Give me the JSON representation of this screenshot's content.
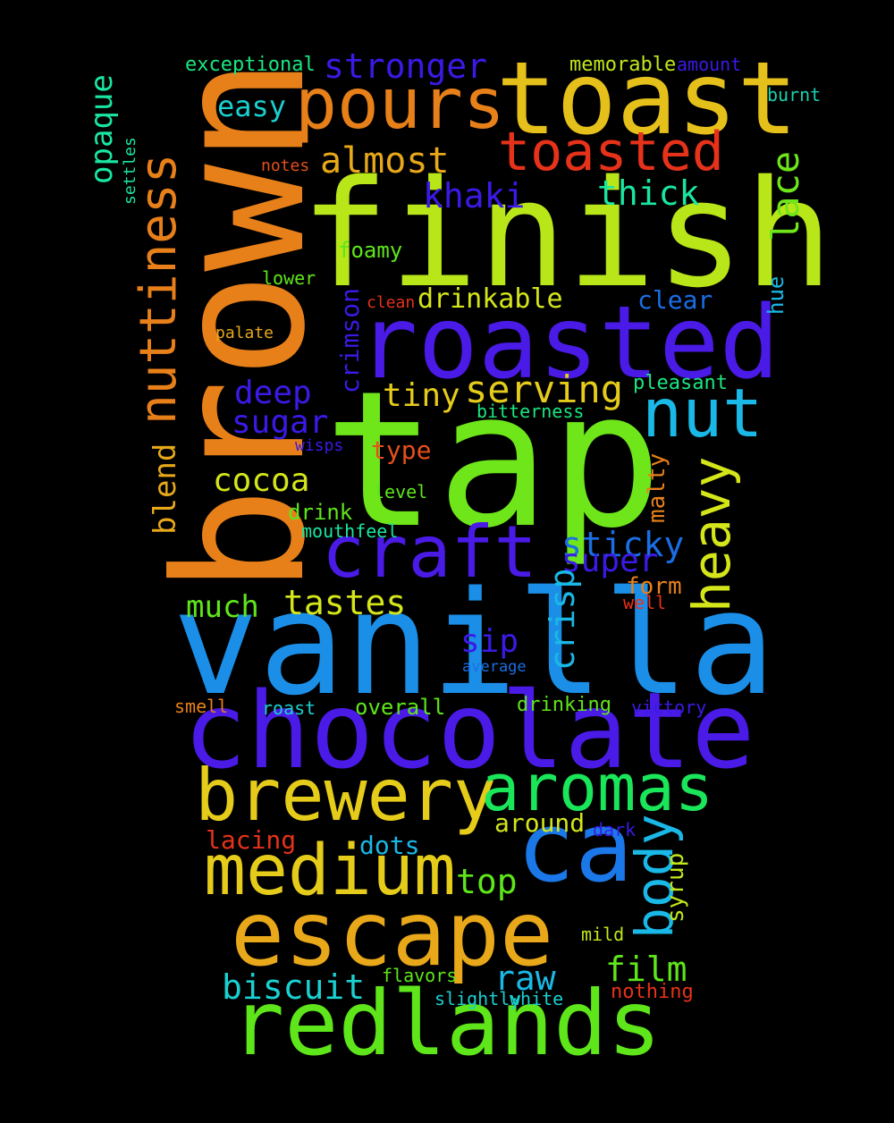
{
  "words": [
    {
      "text": "tap",
      "color": "#6ee61a"
    },
    {
      "text": "brown",
      "color": "#e8801a"
    },
    {
      "text": "finish",
      "color": "#b9e619"
    },
    {
      "text": "vanilla",
      "color": "#1b8fe8"
    },
    {
      "text": "chocolate",
      "color": "#4a1ae6"
    },
    {
      "text": "roasted",
      "color": "#4a1ae6"
    },
    {
      "text": "toast",
      "color": "#e6c01a"
    },
    {
      "text": "pours",
      "color": "#e8801a"
    },
    {
      "text": "redlands",
      "color": "#5ee61a"
    },
    {
      "text": "escape",
      "color": "#e8a81a"
    },
    {
      "text": "ca",
      "color": "#1b78e8"
    },
    {
      "text": "brewery",
      "color": "#e6cc1a"
    },
    {
      "text": "aromas",
      "color": "#1ae65a"
    },
    {
      "text": "medium",
      "color": "#e6cc1a"
    },
    {
      "text": "craft",
      "color": "#4a1ae6"
    },
    {
      "text": "nuttiness",
      "color": "#e8801a"
    },
    {
      "text": "nut",
      "color": "#1ab8e6"
    },
    {
      "text": "toasted",
      "color": "#e6321a"
    },
    {
      "text": "body",
      "color": "#1ab8e6"
    },
    {
      "text": "heavy",
      "color": "#d4e61a"
    },
    {
      "text": "serving",
      "color": "#e6cc1a"
    },
    {
      "text": "tastes",
      "color": "#d4e61a"
    },
    {
      "text": "stronger",
      "color": "#3a1ae6"
    },
    {
      "text": "almost",
      "color": "#e8a81a"
    },
    {
      "text": "lace",
      "color": "#6ee61a"
    },
    {
      "text": "thick",
      "color": "#1ae6a0"
    },
    {
      "text": "khaki",
      "color": "#3a1ae6"
    },
    {
      "text": "film",
      "color": "#5ee61a"
    },
    {
      "text": "biscuit",
      "color": "#1ad0d0"
    },
    {
      "text": "sticky",
      "color": "#1a6ee6"
    },
    {
      "text": "super",
      "color": "#3a1ae6"
    },
    {
      "text": "crisp",
      "color": "#1ab8e6"
    },
    {
      "text": "raw",
      "color": "#1ab8e6"
    },
    {
      "text": "top",
      "color": "#5ee61a"
    },
    {
      "text": "deep",
      "color": "#3a1ae6"
    },
    {
      "text": "sugar",
      "color": "#3a1ae6"
    },
    {
      "text": "tiny",
      "color": "#e6cc1a"
    },
    {
      "text": "cocoa",
      "color": "#d4e61a"
    },
    {
      "text": "much",
      "color": "#5ee61a"
    },
    {
      "text": "sip",
      "color": "#3a1ae6"
    },
    {
      "text": "easy",
      "color": "#1ad0d0"
    },
    {
      "text": "opaque",
      "color": "#1ae6a0"
    },
    {
      "text": "blend",
      "color": "#e8a81a"
    },
    {
      "text": "drinkable",
      "color": "#d4e61a"
    },
    {
      "text": "around",
      "color": "#d4e61a"
    },
    {
      "text": "crimson",
      "color": "#3a1ae6"
    },
    {
      "text": "malty",
      "color": "#e8801a"
    },
    {
      "text": "syrup",
      "color": "#c0e61a"
    },
    {
      "text": "form",
      "color": "#e8801a"
    },
    {
      "text": "clear",
      "color": "#1a6ee6"
    },
    {
      "text": "hue",
      "color": "#1ab8e6"
    },
    {
      "text": "pleasant",
      "color": "#1ae680"
    },
    {
      "text": "exceptional",
      "color": "#1ae680"
    },
    {
      "text": "memorable",
      "color": "#c0e61a"
    },
    {
      "text": "amount",
      "color": "#3a1ae6"
    },
    {
      "text": "burnt",
      "color": "#1ad0b0"
    },
    {
      "text": "type",
      "color": "#e6501a"
    },
    {
      "text": "lacing",
      "color": "#e6321a"
    },
    {
      "text": "dots",
      "color": "#1ab8e6"
    },
    {
      "text": "overall",
      "color": "#5ee61a"
    },
    {
      "text": "drinking",
      "color": "#5ee61a"
    },
    {
      "text": "foamy",
      "color": "#5ee61a"
    },
    {
      "text": "drink",
      "color": "#5ee61a"
    },
    {
      "text": "mouthfeel",
      "color": "#1ae6a0"
    },
    {
      "text": "bitterness",
      "color": "#1ae680"
    },
    {
      "text": "notes",
      "color": "#e6501a"
    },
    {
      "text": "lower",
      "color": "#5ee61a"
    },
    {
      "text": "clean",
      "color": "#e6321a"
    },
    {
      "text": "palate",
      "color": "#e8a81a"
    },
    {
      "text": "wisps",
      "color": "#3a1ae6"
    },
    {
      "text": "level",
      "color": "#5ee61a"
    },
    {
      "text": "settles",
      "color": "#1ae6a0"
    },
    {
      "text": "well",
      "color": "#e6321a"
    },
    {
      "text": "average",
      "color": "#1a6ee6"
    },
    {
      "text": "smell",
      "color": "#e8801a"
    },
    {
      "text": "roast",
      "color": "#1ad0d0"
    },
    {
      "text": "victory",
      "color": "#3a1ae6"
    },
    {
      "text": "dark",
      "color": "#3a1ae6"
    },
    {
      "text": "mild",
      "color": "#c0e61a"
    },
    {
      "text": "flavors",
      "color": "#5ee61a"
    },
    {
      "text": "slightly",
      "color": "#1ad0d0"
    },
    {
      "text": "white",
      "color": "#1ad0d0"
    },
    {
      "text": "nothing",
      "color": "#e6321a"
    }
  ]
}
